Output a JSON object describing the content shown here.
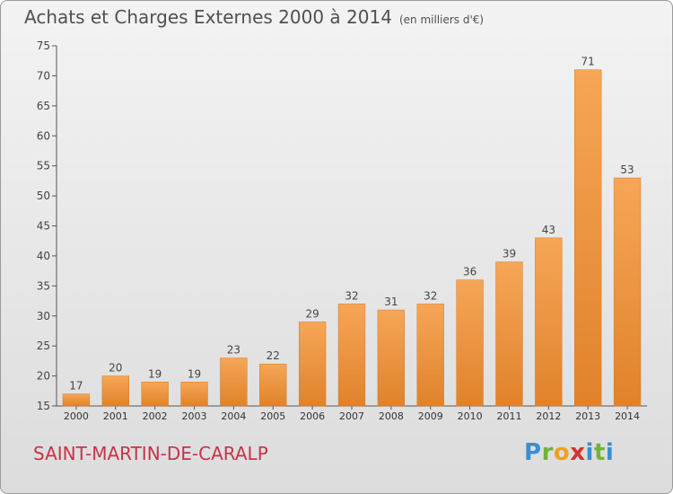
{
  "header": {
    "title": "Achats et Charges Externes 2000 à 2014",
    "unit": "(en milliers d'€)"
  },
  "footer": {
    "commune": "SAINT-MARTIN-DE-CARALP",
    "brand": "Proxiti"
  },
  "colors": {
    "bar_light": "#f6a657",
    "bar_dark": "#e0822b",
    "commune": "#c8324a"
  },
  "chart_data": {
    "type": "bar",
    "categories": [
      "2000",
      "2001",
      "2002",
      "2003",
      "2004",
      "2005",
      "2006",
      "2007",
      "2008",
      "2009",
      "2010",
      "2011",
      "2012",
      "2013",
      "2014"
    ],
    "values": [
      17,
      20,
      19,
      19,
      23,
      22,
      29,
      32,
      31,
      32,
      36,
      39,
      43,
      71,
      53
    ],
    "title": "Achats et Charges Externes 2000 à 2014",
    "ylim": [
      15,
      75
    ],
    "yticks": [
      15,
      20,
      25,
      30,
      35,
      40,
      45,
      50,
      55,
      60,
      65,
      70,
      75
    ],
    "grid": false,
    "legend": "none",
    "data_labels": true
  }
}
